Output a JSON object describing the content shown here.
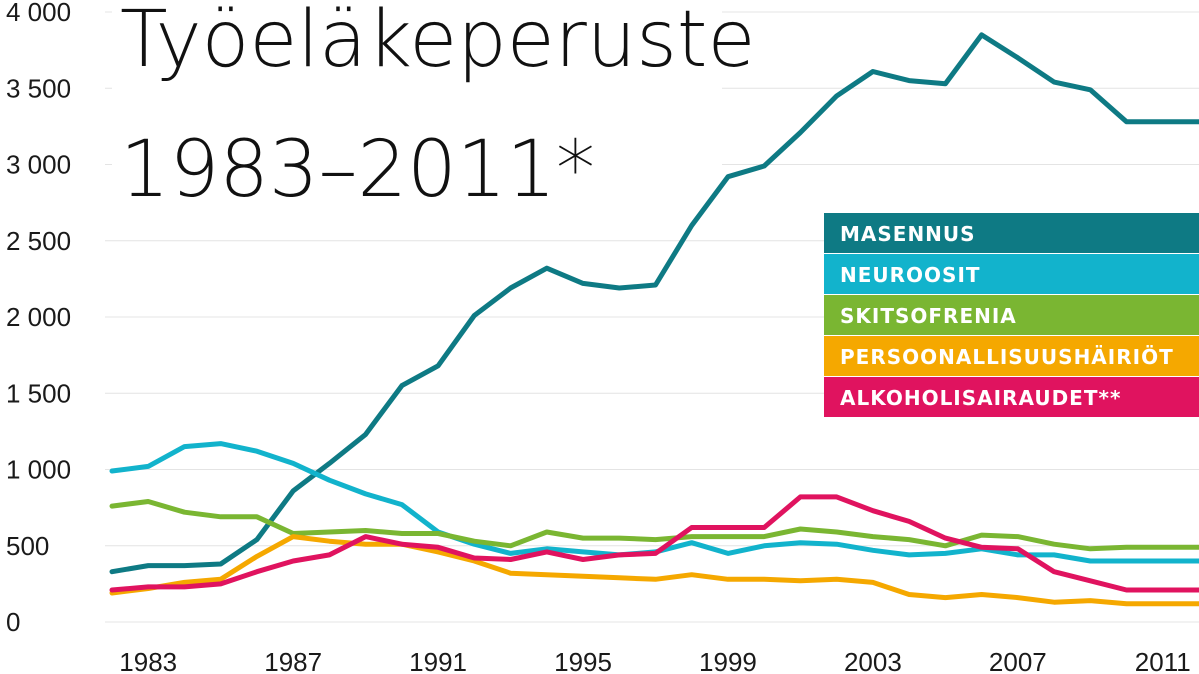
{
  "chart_data": {
    "type": "line",
    "title": "Työeläkeperuste",
    "subtitle": "1983–2011*",
    "xlabel": "",
    "ylabel": "",
    "xlim": [
      1982,
      2012
    ],
    "ylim": [
      0,
      4000
    ],
    "grid": true,
    "legend_placement": "right",
    "y_ticks": [
      {
        "value": 4000,
        "label": "4 000"
      },
      {
        "value": 3500,
        "label": "3 500"
      },
      {
        "value": 3000,
        "label": "3 000"
      },
      {
        "value": 2500,
        "label": "2 500"
      },
      {
        "value": 2000,
        "label": "2 000"
      },
      {
        "value": 1500,
        "label": "1 500"
      },
      {
        "value": 1000,
        "label": "1 000"
      },
      {
        "value": 500,
        "label": "500"
      },
      {
        "value": 0,
        "label": "0"
      }
    ],
    "x_ticks": [
      {
        "value": 1983,
        "label": "1983"
      },
      {
        "value": 1987,
        "label": "1987"
      },
      {
        "value": 1991,
        "label": "1991"
      },
      {
        "value": 1995,
        "label": "1995"
      },
      {
        "value": 1999,
        "label": "1999"
      },
      {
        "value": 2003,
        "label": "2003"
      },
      {
        "value": 2007,
        "label": "2007"
      },
      {
        "value": 2011,
        "label": "2011"
      }
    ],
    "x": [
      1982,
      1983,
      1984,
      1985,
      1986,
      1987,
      1988,
      1989,
      1990,
      1991,
      1992,
      1993,
      1994,
      1995,
      1996,
      1997,
      1998,
      1999,
      2000,
      2001,
      2002,
      2003,
      2004,
      2005,
      2006,
      2007,
      2008,
      2009,
      2010,
      2011,
      2012
    ],
    "series": [
      {
        "name": "MASENNUS",
        "color": "#0e7a84",
        "values": [
          330,
          370,
          370,
          380,
          540,
          860,
          1040,
          1230,
          1550,
          1680,
          2010,
          2190,
          2320,
          2220,
          2190,
          2210,
          2600,
          2920,
          2990,
          3210,
          3450,
          3610,
          3550,
          3530,
          3850,
          3700,
          3540,
          3490,
          3280,
          3280,
          3280
        ]
      },
      {
        "name": "NEUROOSIT",
        "color": "#12b3cc",
        "values": [
          990,
          1020,
          1150,
          1170,
          1120,
          1040,
          930,
          840,
          770,
          590,
          510,
          450,
          480,
          460,
          440,
          460,
          520,
          450,
          500,
          520,
          510,
          470,
          440,
          450,
          480,
          440,
          440,
          400,
          400,
          400,
          400
        ]
      },
      {
        "name": "SKITSOFRENIA",
        "color": "#7ab632",
        "values": [
          760,
          790,
          720,
          690,
          690,
          580,
          590,
          600,
          580,
          580,
          530,
          500,
          590,
          550,
          550,
          540,
          560,
          560,
          560,
          610,
          590,
          560,
          540,
          500,
          570,
          560,
          510,
          480,
          490,
          490,
          490
        ]
      },
      {
        "name": "PERSOONALLISUUSHÄIRIÖT",
        "color": "#f5a800",
        "values": [
          190,
          220,
          260,
          280,
          430,
          560,
          530,
          510,
          510,
          460,
          400,
          320,
          310,
          300,
          290,
          280,
          310,
          280,
          280,
          270,
          280,
          260,
          180,
          160,
          180,
          160,
          130,
          140,
          120,
          120,
          120
        ]
      },
      {
        "name": "ALKOHOLISAIRAUDET**",
        "color": "#e0135f",
        "values": [
          210,
          230,
          230,
          250,
          330,
          400,
          440,
          560,
          510,
          490,
          420,
          410,
          460,
          410,
          440,
          450,
          620,
          620,
          620,
          820,
          820,
          730,
          660,
          550,
          490,
          480,
          330,
          270,
          210,
          210,
          210
        ]
      }
    ]
  }
}
